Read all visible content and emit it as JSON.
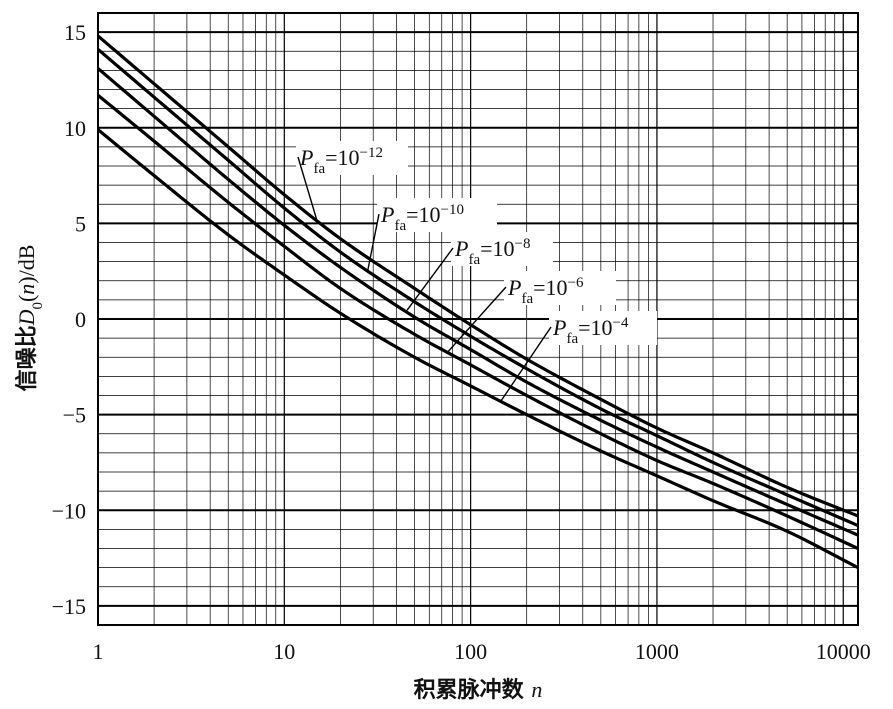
{
  "chart_data": {
    "type": "line",
    "x_scale": "log",
    "xlim": [
      1,
      12000
    ],
    "ylim": [
      -16,
      16
    ],
    "grid": true,
    "x_ticks": [
      1,
      10,
      100,
      1000,
      10000
    ],
    "x_tick_labels": [
      "1",
      "10",
      "100",
      "1000",
      "10000"
    ],
    "y_ticks": [
      15,
      10,
      5,
      0,
      -5,
      -10,
      -15
    ],
    "y_tick_labels": [
      "15",
      "10",
      "5",
      "0",
      "−5",
      "−10",
      "−15"
    ],
    "xlabel": {
      "text": "积累脉冲数 ",
      "var": "n"
    },
    "ylabel": {
      "text": "信噪比",
      "sym": "D",
      "sub": "0",
      "open": "(",
      "var": "n",
      "close": ")",
      "unit": "/dB"
    },
    "series": [
      {
        "name": "P_fa=10^-12",
        "label": {
          "p": "P",
          "sub": "fa",
          "eq": "=10",
          "exp": "−12"
        },
        "x": [
          1,
          2,
          5,
          10,
          20,
          50,
          100,
          200,
          500,
          1000,
          2000,
          5000,
          12000
        ],
        "y": [
          14.8,
          12.3,
          9.0,
          6.5,
          4.2,
          1.6,
          -0.3,
          -2.1,
          -4.2,
          -5.7,
          -7.0,
          -8.8,
          -10.3
        ]
      },
      {
        "name": "P_fa=10^-10",
        "label": {
          "p": "P",
          "sub": "fa",
          "eq": "=10",
          "exp": "−10"
        },
        "x": [
          1,
          2,
          5,
          10,
          20,
          50,
          100,
          200,
          500,
          1000,
          2000,
          5000,
          12000
        ],
        "y": [
          14.1,
          11.6,
          8.3,
          5.8,
          3.5,
          0.9,
          -0.9,
          -2.6,
          -4.7,
          -6.1,
          -7.5,
          -9.2,
          -10.8
        ]
      },
      {
        "name": "P_fa=10^-8",
        "label": {
          "p": "P",
          "sub": "fa",
          "eq": "=10",
          "exp": "−8"
        },
        "x": [
          1,
          2,
          5,
          10,
          20,
          50,
          100,
          200,
          500,
          1000,
          2000,
          5000,
          12000
        ],
        "y": [
          13.1,
          10.6,
          7.3,
          4.9,
          2.7,
          0.1,
          -1.6,
          -3.3,
          -5.3,
          -6.7,
          -8.0,
          -9.7,
          -11.3
        ]
      },
      {
        "name": "P_fa=10^-6",
        "label": {
          "p": "P",
          "sub": "fa",
          "eq": "=10",
          "exp": "−6"
        },
        "x": [
          1,
          2,
          5,
          10,
          20,
          50,
          100,
          200,
          500,
          1000,
          2000,
          5000,
          12000
        ],
        "y": [
          11.7,
          9.3,
          6.1,
          3.8,
          1.6,
          -0.8,
          -2.4,
          -4.0,
          -6.0,
          -7.4,
          -8.6,
          -10.3,
          -12.0
        ]
      },
      {
        "name": "P_fa=10^-4",
        "label": {
          "p": "P",
          "sub": "fa",
          "eq": "=10",
          "exp": "−4"
        },
        "x": [
          1,
          2,
          5,
          10,
          20,
          50,
          100,
          200,
          500,
          1000,
          2000,
          5000,
          12000
        ],
        "y": [
          9.9,
          7.5,
          4.4,
          2.3,
          0.3,
          -2.0,
          -3.5,
          -5.0,
          -6.9,
          -8.2,
          -9.5,
          -11.1,
          -13.0
        ]
      }
    ]
  }
}
